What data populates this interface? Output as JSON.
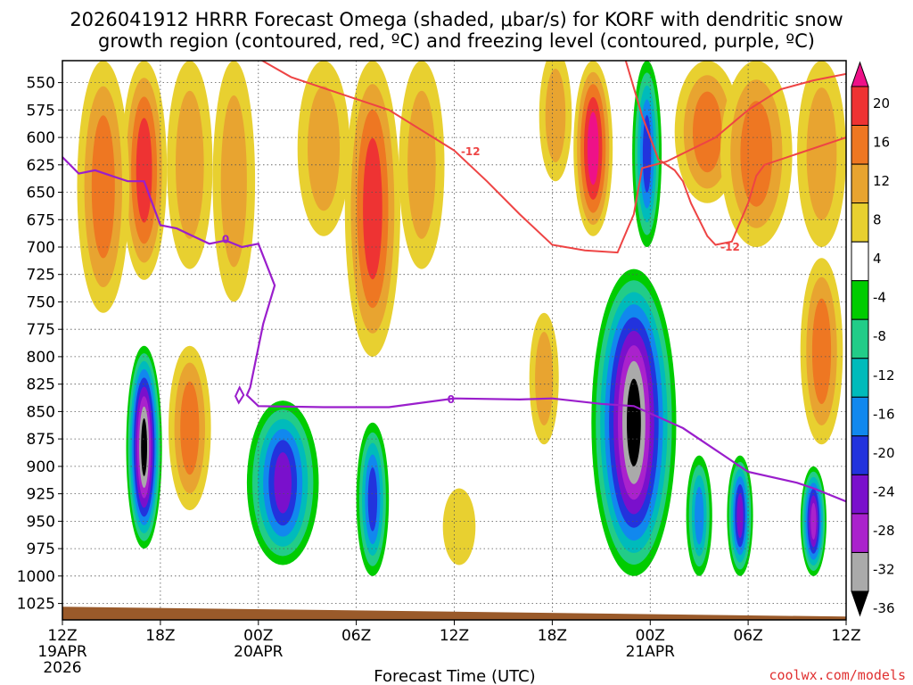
{
  "chart_data": {
    "type": "heatmap",
    "title_lines": [
      "2026041912 HRRR Forecast Omega (shaded, μbar/s) for KORF with dendritic snow",
      "growth region (contoured, red, ºC) and freezing level (contoured, purple, ºC)"
    ],
    "xlabel": "Forecast Time (UTC)",
    "credit": "coolwx.com/models",
    "x_hours_range": [
      0,
      48
    ],
    "y_range_hpa": [
      530,
      1040
    ],
    "x_ticks": [
      {
        "hour": 0,
        "label": "12Z",
        "sub": [
          "19APR",
          "2026"
        ]
      },
      {
        "hour": 6,
        "label": "18Z",
        "sub": []
      },
      {
        "hour": 12,
        "label": "00Z",
        "sub": [
          "20APR"
        ]
      },
      {
        "hour": 18,
        "label": "06Z",
        "sub": []
      },
      {
        "hour": 24,
        "label": "12Z",
        "sub": []
      },
      {
        "hour": 30,
        "label": "18Z",
        "sub": []
      },
      {
        "hour": 36,
        "label": "00Z",
        "sub": [
          "21APR"
        ]
      },
      {
        "hour": 42,
        "label": "06Z",
        "sub": []
      },
      {
        "hour": 48,
        "label": "12Z",
        "sub": []
      }
    ],
    "y_ticks": [
      550,
      575,
      600,
      625,
      650,
      675,
      700,
      725,
      750,
      775,
      800,
      825,
      850,
      875,
      900,
      925,
      950,
      975,
      1000,
      1025
    ],
    "colorbar": {
      "labels": [
        "20",
        "16",
        "12",
        "8",
        "4",
        "-4",
        "-8",
        "-12",
        "-16",
        "-20",
        "-24",
        "-28",
        "-32",
        "-36"
      ],
      "colors": [
        "#ee1188",
        "#ee3333",
        "#ee7722",
        "#e8a430",
        "#e8d030",
        "#ffffff",
        "#00cc00",
        "#22cc88",
        "#00bbbb",
        "#1188ee",
        "#2233dd",
        "#7a10cc",
        "#aa22cc",
        "#aaaaaa",
        "#000000"
      ]
    },
    "contour_labels": {
      "dgz": "-12",
      "freezing": "0"
    },
    "dendritic_top": [
      [
        0,
        528
      ],
      [
        6,
        527
      ],
      [
        12,
        528
      ],
      [
        14,
        545
      ],
      [
        17,
        560
      ],
      [
        20,
        575
      ],
      [
        24,
        612
      ],
      [
        26,
        640
      ],
      [
        28,
        670
      ],
      [
        30,
        698
      ],
      [
        32,
        703
      ],
      [
        34,
        705
      ],
      [
        35,
        670
      ],
      [
        35.5,
        628
      ],
      [
        37,
        622
      ],
      [
        40,
        600
      ],
      [
        42,
        575
      ],
      [
        44,
        556
      ],
      [
        46,
        548
      ],
      [
        48,
        542
      ]
    ],
    "dendritic_bottom": [
      [
        34.5,
        530
      ],
      [
        35.5,
        580
      ],
      [
        36.5,
        620
      ],
      [
        37.5,
        630
      ],
      [
        38,
        640
      ],
      [
        38.5,
        660
      ],
      [
        39.5,
        690
      ],
      [
        40,
        698
      ],
      [
        41,
        695
      ],
      [
        42,
        660
      ],
      [
        42.5,
        635
      ],
      [
        43,
        625
      ],
      [
        45,
        615
      ],
      [
        48,
        600
      ]
    ],
    "freezing_level": [
      [
        0,
        618
      ],
      [
        1,
        633
      ],
      [
        2,
        630
      ],
      [
        3,
        635
      ],
      [
        4,
        640
      ],
      [
        5,
        640
      ],
      [
        6,
        680
      ],
      [
        7,
        683
      ],
      [
        8,
        690
      ],
      [
        9,
        697
      ],
      [
        10,
        694
      ],
      [
        11,
        700
      ],
      [
        12,
        697
      ],
      [
        13,
        735
      ],
      [
        12.3,
        770
      ],
      [
        11.5,
        828
      ],
      [
        11.3,
        835
      ],
      [
        12,
        845
      ],
      [
        16,
        846
      ],
      [
        20,
        846
      ],
      [
        24,
        838
      ],
      [
        28,
        839
      ],
      [
        30,
        838
      ],
      [
        33,
        843
      ],
      [
        35,
        845
      ],
      [
        38,
        865
      ],
      [
        40,
        885
      ],
      [
        42,
        905
      ],
      [
        45,
        915
      ],
      [
        46,
        920
      ],
      [
        48,
        932
      ]
    ],
    "omega_features": [
      {
        "hour": 5.0,
        "p_top": 790,
        "p_bot": 975,
        "halfwidth": 1.1,
        "peak": -36
      },
      {
        "hour": 5.0,
        "p_top": 530,
        "p_bot": 730,
        "halfwidth": 1.4,
        "peak": 18
      },
      {
        "hour": 2.5,
        "p_top": 530,
        "p_bot": 760,
        "halfwidth": 1.6,
        "peak": 12
      },
      {
        "hour": 7.8,
        "p_top": 530,
        "p_bot": 720,
        "halfwidth": 1.4,
        "peak": 10
      },
      {
        "hour": 7.8,
        "p_top": 790,
        "p_bot": 940,
        "halfwidth": 1.3,
        "peak": 14
      },
      {
        "hour": 10.5,
        "p_top": 530,
        "p_bot": 750,
        "halfwidth": 1.3,
        "peak": 10
      },
      {
        "hour": 13.5,
        "p_top": 840,
        "p_bot": 990,
        "halfwidth": 2.2,
        "peak": -24
      },
      {
        "hour": 16.0,
        "p_top": 530,
        "p_bot": 690,
        "halfwidth": 1.6,
        "peak": 11
      },
      {
        "hour": 19.0,
        "p_top": 530,
        "p_bot": 800,
        "halfwidth": 1.7,
        "peak": 19
      },
      {
        "hour": 19.0,
        "p_top": 860,
        "p_bot": 1000,
        "halfwidth": 1.0,
        "peak": -20
      },
      {
        "hour": 22.0,
        "p_top": 530,
        "p_bot": 720,
        "halfwidth": 1.4,
        "peak": 9
      },
      {
        "hour": 24.3,
        "p_top": 920,
        "p_bot": 990,
        "halfwidth": 1.0,
        "peak": 6
      },
      {
        "hour": 29.5,
        "p_top": 760,
        "p_bot": 880,
        "halfwidth": 0.9,
        "peak": 9
      },
      {
        "hour": 30.2,
        "p_top": 520,
        "p_bot": 640,
        "halfwidth": 1.0,
        "peak": 9
      },
      {
        "hour": 32.5,
        "p_top": 530,
        "p_bot": 690,
        "halfwidth": 1.2,
        "peak": 20
      },
      {
        "hour": 35.0,
        "p_top": 720,
        "p_bot": 1000,
        "halfwidth": 2.6,
        "peak": -36
      },
      {
        "hour": 35.8,
        "p_top": 530,
        "p_bot": 700,
        "halfwidth": 0.9,
        "peak": -20
      },
      {
        "hour": 39.5,
        "p_top": 530,
        "p_bot": 660,
        "halfwidth": 2.0,
        "peak": 12
      },
      {
        "hour": 42.5,
        "p_top": 530,
        "p_bot": 700,
        "halfwidth": 2.2,
        "peak": 14
      },
      {
        "hour": 46.5,
        "p_top": 710,
        "p_bot": 880,
        "halfwidth": 1.3,
        "peak": 15
      },
      {
        "hour": 46.5,
        "p_top": 530,
        "p_bot": 700,
        "halfwidth": 1.5,
        "peak": 11
      },
      {
        "hour": 41.5,
        "p_top": 890,
        "p_bot": 1000,
        "halfwidth": 0.8,
        "peak": -24
      },
      {
        "hour": 46.0,
        "p_top": 900,
        "p_bot": 1000,
        "halfwidth": 0.8,
        "peak": -28
      },
      {
        "hour": 39.0,
        "p_top": 890,
        "p_bot": 1000,
        "halfwidth": 0.8,
        "peak": -16
      }
    ]
  }
}
